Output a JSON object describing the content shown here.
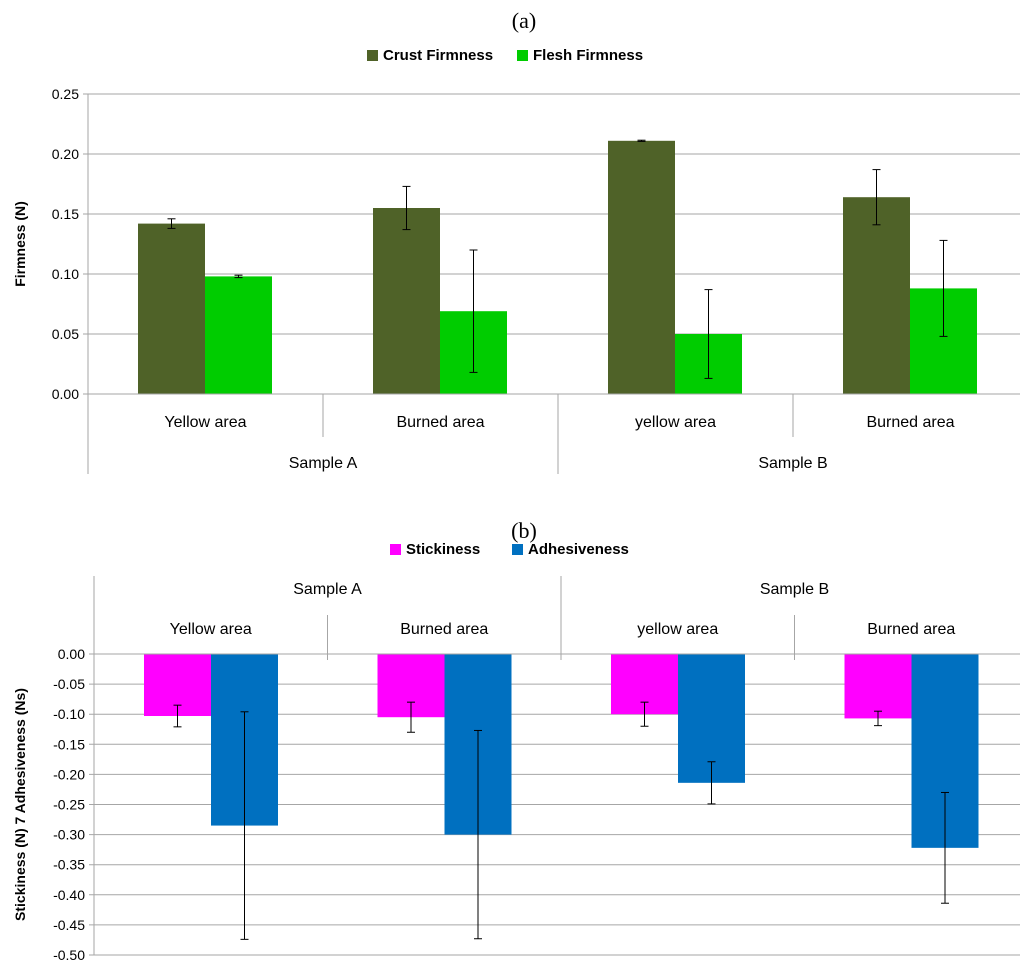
{
  "chart_data": [
    {
      "type": "bar",
      "title": "(a)",
      "ylabel": "Firmness (N)",
      "ylim": [
        0,
        0.25
      ],
      "yticks": [
        "0.00",
        "0.05",
        "0.10",
        "0.15",
        "0.20",
        "0.25"
      ],
      "groups": [
        "Sample A",
        "Sample B"
      ],
      "categories": [
        "Yellow area",
        "Burned area",
        "yellow area",
        "Burned area"
      ],
      "category_group": [
        0,
        0,
        1,
        1
      ],
      "series": [
        {
          "name": "Crust Firmness",
          "color": "#4F6228",
          "values": [
            0.142,
            0.155,
            0.211,
            0.164
          ],
          "errors": [
            0.004,
            0.018,
            0.0005,
            0.023
          ]
        },
        {
          "name": "Flesh Firmness",
          "color": "#00CC00",
          "values": [
            0.098,
            0.069,
            0.05,
            0.088
          ],
          "errors": [
            0.001,
            0.051,
            0.037,
            0.04
          ]
        }
      ],
      "legend": "top",
      "grid": true
    },
    {
      "type": "bar",
      "title": "(b)",
      "ylabel": "Stickiness (N) 7 Adhesiveness (Ns)",
      "ylim": [
        -0.5,
        0
      ],
      "yticks": [
        "0.00",
        "-0.05",
        "-0.10",
        "-0.15",
        "-0.20",
        "-0.25",
        "-0.30",
        "-0.35",
        "-0.40",
        "-0.45",
        "-0.50"
      ],
      "groups": [
        "Sample A",
        "Sample B"
      ],
      "categories": [
        "Yellow area",
        "Burned area",
        "yellow area",
        "Burned area"
      ],
      "category_group": [
        0,
        0,
        1,
        1
      ],
      "series": [
        {
          "name": "Stickiness",
          "color": "#FF00FF",
          "values": [
            -0.103,
            -0.105,
            -0.1,
            -0.107
          ],
          "errors": [
            0.018,
            0.025,
            0.02,
            0.012
          ]
        },
        {
          "name": "Adhesiveness",
          "color": "#0070C0",
          "values": [
            -0.285,
            -0.3,
            -0.214,
            -0.322
          ],
          "errors": [
            0.189,
            0.173,
            0.035,
            0.092
          ]
        }
      ],
      "legend": "top",
      "grid": true
    }
  ]
}
